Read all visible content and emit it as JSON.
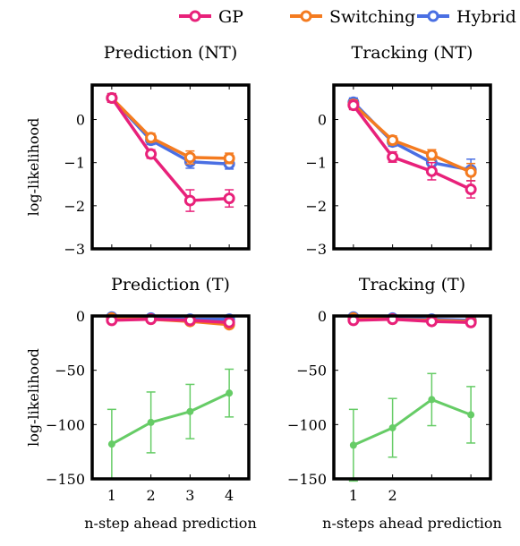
{
  "legend": [
    {
      "name": "GP",
      "color": "#e8217a"
    },
    {
      "name": "Switching",
      "color": "#f47b20"
    },
    {
      "name": "Hybrid",
      "color": "#4a6fe3"
    }
  ],
  "colors": {
    "gp": "#e8217a",
    "switching": "#f47b20",
    "hybrid": "#4a6fe3",
    "true_model": "#66cc66"
  },
  "chart_data": [
    {
      "type": "line",
      "title": "Prediction (NT)",
      "ylabel": "log-likelihood",
      "xlabel": "",
      "x": [
        1,
        2,
        3,
        4
      ],
      "xlim": [
        0.5,
        4.5
      ],
      "ylim": [
        -3,
        0.8
      ],
      "yticks": [
        0,
        -1,
        -2,
        -3
      ],
      "xticks": [],
      "series": [
        {
          "name": "GP",
          "values": [
            0.5,
            -0.8,
            -1.88,
            -1.83
          ],
          "errors": [
            0.1,
            0.1,
            0.25,
            0.2
          ]
        },
        {
          "name": "Switching",
          "values": [
            0.5,
            -0.42,
            -0.88,
            -0.9
          ],
          "errors": [
            0.1,
            0.1,
            0.15,
            0.12
          ]
        },
        {
          "name": "Hybrid",
          "values": [
            0.5,
            -0.48,
            -0.98,
            -1.03
          ],
          "errors": [
            0.1,
            0.1,
            0.15,
            0.12
          ]
        }
      ]
    },
    {
      "type": "line",
      "title": "Tracking (NT)",
      "ylabel": "",
      "xlabel": "",
      "x": [
        1,
        2,
        3,
        4
      ],
      "xlim": [
        0.5,
        4.5
      ],
      "ylim": [
        -3,
        0.8
      ],
      "yticks": [
        0,
        -1,
        -2,
        -3
      ],
      "xticks": [],
      "series": [
        {
          "name": "GP",
          "values": [
            0.33,
            -0.87,
            -1.2,
            -1.62
          ],
          "errors": [
            0.1,
            0.12,
            0.2,
            0.2
          ]
        },
        {
          "name": "Switching",
          "values": [
            0.35,
            -0.48,
            -0.82,
            -1.22
          ],
          "errors": [
            0.1,
            0.1,
            0.12,
            0.2
          ]
        },
        {
          "name": "Hybrid",
          "values": [
            0.4,
            -0.52,
            -1.0,
            -1.17
          ],
          "errors": [
            0.1,
            0.1,
            0.15,
            0.25
          ]
        }
      ]
    },
    {
      "type": "line",
      "title": "Prediction (T)",
      "ylabel": "log-likelihood",
      "xlabel": "n-step ahead prediction",
      "x": [
        1,
        2,
        3,
        4
      ],
      "xlim": [
        0.5,
        4.5
      ],
      "ylim": [
        -150,
        0
      ],
      "yticks": [
        0,
        -50,
        -100,
        -150
      ],
      "xticks": [
        "1",
        "2",
        "3",
        "4"
      ],
      "series": [
        {
          "name": "GP",
          "values": [
            -4,
            -3,
            -4,
            -6
          ],
          "errors": [
            1,
            1,
            1,
            1
          ]
        },
        {
          "name": "Switching",
          "values": [
            -2,
            -3,
            -5,
            -8
          ],
          "errors": [
            1,
            1,
            1,
            1
          ]
        },
        {
          "name": "Hybrid",
          "values": [
            -1,
            -2,
            -3,
            -3
          ],
          "errors": [
            1,
            1,
            1,
            1
          ]
        },
        {
          "name": "",
          "values": [
            -118,
            -98,
            -88,
            -71
          ],
          "errors": [
            32,
            28,
            25,
            22
          ]
        }
      ]
    },
    {
      "type": "line",
      "title": "Tracking (T)",
      "ylabel": "",
      "xlabel": "n-steps ahead prediction",
      "x": [
        1,
        2,
        3,
        4
      ],
      "xlim": [
        0.5,
        4.5
      ],
      "ylim": [
        -150,
        0
      ],
      "yticks": [
        0,
        -50,
        -100,
        -150
      ],
      "xticks": [
        "1",
        "2",
        "",
        ""
      ],
      "series": [
        {
          "name": "GP",
          "values": [
            -4,
            -3,
            -5,
            -6
          ],
          "errors": [
            1,
            1,
            1,
            1
          ]
        },
        {
          "name": "Switching",
          "values": [
            -2,
            -3,
            -4,
            -5
          ],
          "errors": [
            1,
            1,
            1,
            1
          ]
        },
        {
          "name": "Hybrid",
          "values": [
            -1,
            -2,
            -3,
            -4
          ],
          "errors": [
            1,
            1,
            1,
            1
          ]
        },
        {
          "name": "",
          "values": [
            -119,
            -103,
            -77,
            -91
          ],
          "errors": [
            33,
            27,
            24,
            26
          ]
        }
      ]
    }
  ]
}
